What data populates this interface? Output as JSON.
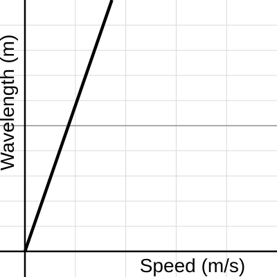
{
  "chart_data": {
    "type": "line",
    "xlabel": "Speed (m/s)",
    "ylabel": "Wavelength (m)",
    "xlim": [
      0,
      10
    ],
    "ylim": [
      0,
      10
    ],
    "grid": true,
    "series": [
      {
        "x": [
          0,
          3.45
        ],
        "y": [
          0,
          10
        ]
      }
    ]
  },
  "colors": {
    "line": "#000000",
    "axis": "#000000",
    "minor_grid": "#d9d9d9",
    "major_grid": "#8c8c8c"
  }
}
